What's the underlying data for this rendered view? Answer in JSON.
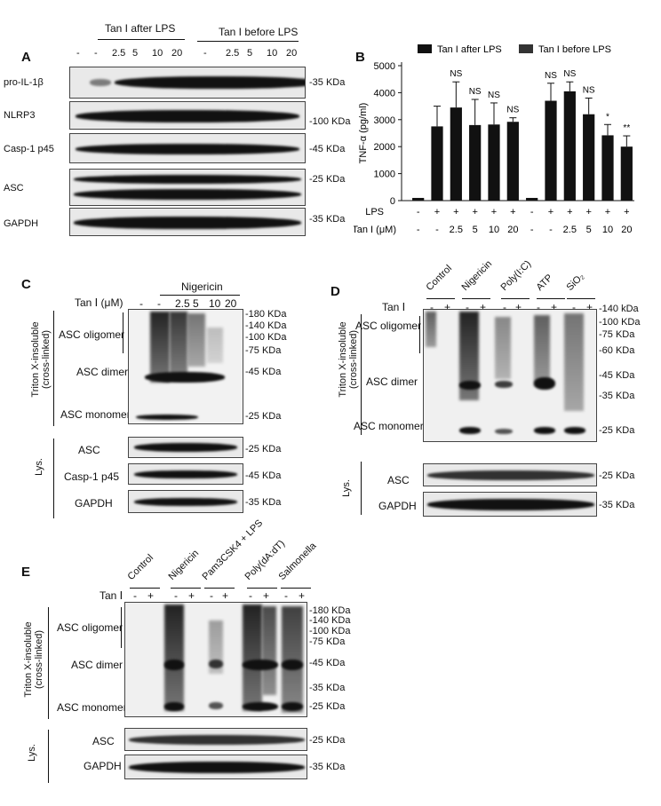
{
  "panels": {
    "a": "A",
    "b": "B",
    "c": "C",
    "d": "D",
    "e": "E"
  },
  "panelA": {
    "group1": "Tan I after LPS",
    "group2": "Tan I before LPS",
    "lanes": [
      "-",
      "-",
      "2.5",
      "5",
      "10",
      "20",
      "-",
      "2.5",
      "5",
      "10",
      "20"
    ],
    "rows": [
      "pro-IL-1β",
      "NLRP3",
      "Casp-1 p45",
      "ASC",
      "GAPDH"
    ],
    "markers": [
      "-35 KDa",
      "-100 KDa",
      "-45 KDa",
      "-25 KDa",
      "-35 KDa"
    ]
  },
  "panelB": {
    "chart_data": {
      "type": "bar",
      "ylabel": "TNF-α (pg/ml)",
      "ylim": [
        0,
        5000
      ],
      "yticks": [
        0,
        1000,
        2000,
        3000,
        4000,
        5000
      ],
      "lps": [
        "-",
        "+",
        "+",
        "+",
        "+",
        "+",
        "-",
        "+",
        "+",
        "+",
        "+",
        "+"
      ],
      "tan": [
        "-",
        "-",
        "2.5",
        "5",
        "10",
        "20",
        "-",
        "-",
        "2.5",
        "5",
        "10",
        "20"
      ],
      "series": [
        {
          "name": "Tan I after LPS",
          "values": [
            100,
            2750,
            3450,
            2800,
            2820,
            2920
          ],
          "errors": [
            0,
            750,
            950,
            950,
            800,
            150
          ]
        },
        {
          "name": "Tan I before LPS",
          "values": [
            100,
            3700,
            4050,
            3200,
            2420,
            2000
          ],
          "errors": [
            0,
            650,
            350,
            600,
            400,
            400
          ]
        }
      ],
      "annotations": [
        "NS",
        "NS",
        "NS",
        "NS",
        "",
        "NS",
        "NS",
        "NS",
        "*",
        "**"
      ]
    },
    "row_lps": "LPS",
    "row_tan": "Tan I (μM)"
  },
  "panelC": {
    "treatment": "Nigericin",
    "tan_label": "Tan Ⅰ (μM)",
    "lanes": [
      "-",
      "-",
      "2.5",
      "5",
      "10",
      "20"
    ],
    "side1": "Triton X-insoluble",
    "side1b": "(cross-linked)",
    "side2": "Lys.",
    "labels": [
      "ASC oligomer",
      "ASC dimer",
      "ASC monomer"
    ],
    "lys_labels": [
      "ASC",
      "Casp-1 p45",
      "GAPDH"
    ],
    "markers": [
      "-180 KDa",
      "-140 KDa",
      "-100 KDa",
      "-75 KDa",
      "-45 KDa",
      "-25 KDa"
    ],
    "lys_markers": [
      "-25 KDa",
      "-45 KDa",
      "-35 KDa"
    ]
  },
  "panelD": {
    "groups": [
      "Control",
      "Nigericin",
      "Poly(I:C)",
      "ATP",
      "SiO₂"
    ],
    "tan_label": "Tan Ⅰ",
    "signs": [
      "-",
      "+",
      "-",
      "+",
      "-",
      "+",
      "-",
      "+",
      "-",
      "+"
    ],
    "side1": "Triton X-insoluble",
    "side1b": "(cross-linked)",
    "side2": "Lys.",
    "labels": [
      "ASC oligomer",
      "ASC dimer",
      "ASC monomer"
    ],
    "lys_labels": [
      "ASC",
      "GAPDH"
    ],
    "markers": [
      "-140 kDa",
      "-100 KDa",
      "-75 KDa",
      "-60 KDa",
      "-45 KDa",
      "-35 KDa",
      "-25 KDa"
    ],
    "lys_markers": [
      "-25 KDa",
      "-35 KDa"
    ]
  },
  "panelE": {
    "groups": [
      "Control",
      "Nigericin",
      "Pam3CSK4 + LPS",
      "Poly(dA:dT)",
      "Salmonella"
    ],
    "tan_label": "Tan Ⅰ",
    "signs": [
      "-",
      "+",
      "-",
      "+",
      "-",
      "+",
      "-",
      "+",
      "-",
      "+"
    ],
    "side1": "Triton X-insoluble",
    "side1b": "(cross-linked)",
    "side2": "Lys.",
    "labels": [
      "ASC oligomer",
      "ASC dimer",
      "ASC monomer"
    ],
    "lys_labels": [
      "ASC",
      "GAPDH"
    ],
    "markers": [
      "-180 KDa",
      "-140 KDa",
      "-100 KDa",
      "-75 KDa",
      "-45 KDa",
      "-35 KDa",
      "-25 KDa"
    ],
    "lys_markers": [
      "-25 KDa",
      "-35 KDa"
    ]
  }
}
